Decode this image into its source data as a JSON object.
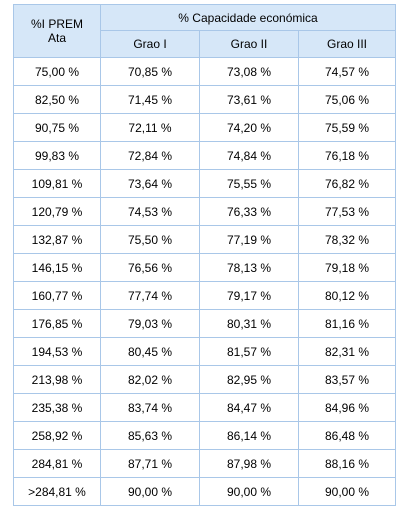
{
  "table": {
    "header": {
      "col1": "%I PREM\nAta",
      "group": "% Capacidade económica",
      "grades": [
        "Grao I",
        "Grao II",
        "Grao III"
      ]
    },
    "rows": [
      [
        "75,00 %",
        "70,85 %",
        "73,08 %",
        "74,57 %"
      ],
      [
        "82,50 %",
        "71,45 %",
        "73,61 %",
        "75,06 %"
      ],
      [
        "90,75 %",
        "72,11 %",
        "74,20 %",
        "75,59 %"
      ],
      [
        "99,83 %",
        "72,84 %",
        "74,84 %",
        "76,18 %"
      ],
      [
        "109,81 %",
        "73,64 %",
        "75,55 %",
        "76,82 %"
      ],
      [
        "120,79 %",
        "74,53 %",
        "76,33 %",
        "77,53 %"
      ],
      [
        "132,87 %",
        "75,50 %",
        "77,19 %",
        "78,32 %"
      ],
      [
        "146,15 %",
        "76,56 %",
        "78,13 %",
        "79,18 %"
      ],
      [
        "160,77 %",
        "77,74 %",
        "79,17 %",
        "80,12 %"
      ],
      [
        "176,85 %",
        "79,03 %",
        "80,31 %",
        "81,16 %"
      ],
      [
        "194,53 %",
        "80,45 %",
        "81,57 %",
        "82,31 %"
      ],
      [
        "213,98 %",
        "82,02 %",
        "82,95 %",
        "83,57 %"
      ],
      [
        "235,38 %",
        "83,74 %",
        "84,47 %",
        "84,96 %"
      ],
      [
        "258,92 %",
        "85,63 %",
        "86,14 %",
        "86,48 %"
      ],
      [
        "284,81 %",
        "87,71 %",
        "87,98 %",
        "88,16 %"
      ],
      [
        ">284,81 %",
        "90,00 %",
        "90,00 %",
        "90,00 %"
      ]
    ]
  }
}
